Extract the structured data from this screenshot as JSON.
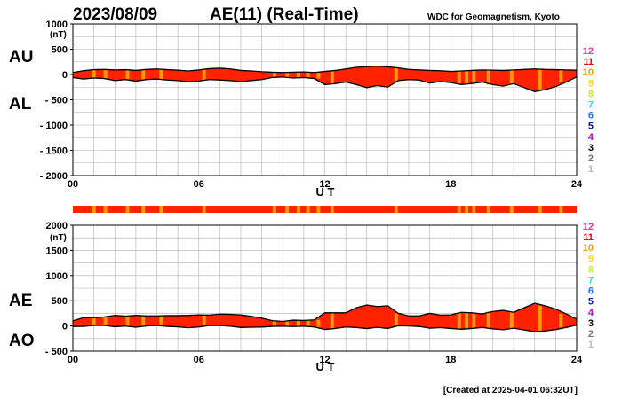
{
  "header": {
    "date": "2023/08/09",
    "title": "AE(11) (Real-Time)",
    "institution": "WDC for Geomagnetism, Kyoto"
  },
  "footer": {
    "created": "[Created at 2025-04-01 06:32UT]"
  },
  "station_scale": [
    {
      "label": "12",
      "color": "#ff3399"
    },
    {
      "label": "11",
      "color": "#ff0000"
    },
    {
      "label": "10",
      "color": "#ff9900"
    },
    {
      "label": "9",
      "color": "#ffdd00"
    },
    {
      "label": "8",
      "color": "#ccee22"
    },
    {
      "label": "7",
      "color": "#33dddd"
    },
    {
      "label": "6",
      "color": "#1177ff"
    },
    {
      "label": "5",
      "color": "#1111aa"
    },
    {
      "label": "4",
      "color": "#cc00cc"
    },
    {
      "label": "3",
      "color": "#000000"
    },
    {
      "label": "2",
      "color": "#777777"
    },
    {
      "label": "1",
      "color": "#bbbbbb"
    }
  ],
  "colors": {
    "fill": "#ff2200",
    "accent": "#ff9900"
  },
  "station_bar_orange_hours": [
    1.0,
    1.55,
    2.6,
    3.35,
    4.2,
    6.25,
    9.6,
    10.2,
    10.75,
    11.2,
    11.7,
    12.35,
    15.4,
    18.4,
    18.75,
    19.1,
    19.8,
    20.9,
    22.25,
    23.25
  ],
  "chart_data": [
    {
      "type": "area",
      "title": "AE(11) (Real-Time)",
      "xlabel": "U T",
      "ylabel": "(nT)",
      "series_labels": [
        "AU",
        "AL"
      ],
      "xlim": [
        0,
        24
      ],
      "ylim": [
        -2000,
        1000
      ],
      "x_ticks": [
        "00",
        "06",
        "12",
        "18",
        "24"
      ],
      "y_ticks": [
        "1000",
        "500",
        "0",
        "- 500",
        "- 1000",
        "- 1500",
        "- 2000"
      ],
      "grid": true,
      "series": [
        {
          "name": "AU",
          "x": [
            0,
            0.5,
            1,
            1.5,
            2,
            2.5,
            3,
            3.5,
            4,
            4.5,
            5,
            5.5,
            6,
            6.5,
            7,
            7.5,
            8,
            8.5,
            9,
            9.5,
            10,
            10.5,
            11,
            11.5,
            12,
            12.5,
            13,
            13.5,
            14,
            14.5,
            15,
            15.5,
            16,
            16.5,
            17,
            17.5,
            18,
            18.5,
            19,
            19.5,
            20,
            20.5,
            21,
            21.5,
            22,
            22.5,
            23,
            23.5,
            24
          ],
          "values": [
            40,
            75,
            95,
            100,
            90,
            95,
            80,
            100,
            110,
            95,
            85,
            70,
            90,
            115,
            125,
            110,
            80,
            70,
            55,
            45,
            40,
            45,
            50,
            40,
            60,
            80,
            110,
            140,
            155,
            165,
            150,
            130,
            100,
            90,
            80,
            75,
            60,
            70,
            80,
            90,
            85,
            80,
            90,
            100,
            110,
            100,
            95,
            90,
            85
          ]
        },
        {
          "name": "AL",
          "x": [
            0,
            0.5,
            1,
            1.5,
            2,
            2.5,
            3,
            3.5,
            4,
            4.5,
            5,
            5.5,
            6,
            6.5,
            7,
            7.5,
            8,
            8.5,
            9,
            9.5,
            10,
            10.5,
            11,
            11.5,
            12,
            12.5,
            13,
            13.5,
            14,
            14.5,
            15,
            15.5,
            16,
            16.5,
            17,
            17.5,
            18,
            18.5,
            19,
            19.5,
            20,
            20.5,
            21,
            21.5,
            22,
            22.5,
            23,
            23.5,
            24
          ],
          "values": [
            -60,
            -90,
            -70,
            -80,
            -120,
            -100,
            -130,
            -100,
            -90,
            -110,
            -120,
            -140,
            -130,
            -100,
            -110,
            -120,
            -140,
            -120,
            -100,
            -60,
            -50,
            -70,
            -60,
            -80,
            -200,
            -180,
            -150,
            -200,
            -260,
            -220,
            -250,
            -120,
            -100,
            -110,
            -170,
            -140,
            -160,
            -200,
            -180,
            -150,
            -200,
            -230,
            -180,
            -260,
            -340,
            -300,
            -240,
            -150,
            -50
          ]
        }
      ]
    },
    {
      "type": "area",
      "xlabel": "U T",
      "ylabel": "(nT)",
      "series_labels": [
        "AE",
        "AO"
      ],
      "xlim": [
        0,
        24
      ],
      "ylim": [
        -500,
        2000
      ],
      "x_ticks": [
        "00",
        "06",
        "12",
        "18",
        "24"
      ],
      "y_ticks": [
        "2000",
        "1500",
        "1000",
        "500",
        "0",
        "- 500"
      ],
      "grid": true,
      "series": [
        {
          "name": "AE",
          "x": [
            0,
            0.5,
            1,
            1.5,
            2,
            2.5,
            3,
            3.5,
            4,
            4.5,
            5,
            5.5,
            6,
            6.5,
            7,
            7.5,
            8,
            8.5,
            9,
            9.5,
            10,
            10.5,
            11,
            11.5,
            12,
            12.5,
            13,
            13.5,
            14,
            14.5,
            15,
            15.5,
            16,
            16.5,
            17,
            17.5,
            18,
            18.5,
            19,
            19.5,
            20,
            20.5,
            21,
            21.5,
            22,
            22.5,
            23,
            23.5,
            24
          ],
          "values": [
            100,
            165,
            165,
            180,
            210,
            195,
            210,
            200,
            200,
            205,
            205,
            210,
            220,
            215,
            235,
            230,
            220,
            190,
            155,
            105,
            90,
            115,
            110,
            120,
            260,
            260,
            260,
            360,
            415,
            385,
            400,
            250,
            200,
            200,
            250,
            215,
            220,
            270,
            260,
            240,
            285,
            310,
            270,
            360,
            450,
            400,
            335,
            240,
            135
          ]
        },
        {
          "name": "AO",
          "x": [
            0,
            0.5,
            1,
            1.5,
            2,
            2.5,
            3,
            3.5,
            4,
            4.5,
            5,
            5.5,
            6,
            6.5,
            7,
            7.5,
            8,
            8.5,
            9,
            9.5,
            10,
            10.5,
            11,
            11.5,
            12,
            12.5,
            13,
            13.5,
            14,
            14.5,
            15,
            15.5,
            16,
            16.5,
            17,
            17.5,
            18,
            18.5,
            19,
            19.5,
            20,
            20.5,
            21,
            21.5,
            22,
            22.5,
            23,
            23.5,
            24
          ],
          "values": [
            -10,
            -8,
            12,
            10,
            -15,
            -3,
            -25,
            0,
            10,
            -8,
            -18,
            -35,
            -20,
            8,
            8,
            -5,
            -30,
            -25,
            -23,
            -8,
            -5,
            -12,
            -5,
            -20,
            -70,
            -50,
            -20,
            -30,
            -52,
            -27,
            -50,
            5,
            0,
            -10,
            -45,
            -32,
            -50,
            -65,
            -50,
            -30,
            -58,
            -75,
            -45,
            -80,
            -115,
            -100,
            -72,
            -30,
            18
          ]
        }
      ]
    }
  ]
}
